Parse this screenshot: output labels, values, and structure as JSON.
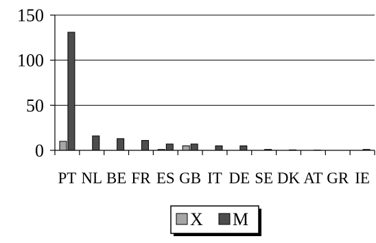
{
  "chart_data": {
    "type": "bar",
    "title": "",
    "xlabel": "",
    "ylabel": "",
    "categories": [
      "PT",
      "NL",
      "BE",
      "FR",
      "ES",
      "GB",
      "IT",
      "DE",
      "SE",
      "DK",
      "AT",
      "GR",
      "IE"
    ],
    "series": [
      {
        "name": "X",
        "color": "#a6a6a6",
        "values": [
          10,
          0,
          0,
          0,
          1,
          5,
          0,
          0,
          0,
          0,
          0,
          0,
          0
        ]
      },
      {
        "name": "M",
        "color": "#4d4d4d",
        "values": [
          131,
          16,
          13,
          11,
          7,
          7,
          5,
          5,
          1,
          0.5,
          0.3,
          0,
          1
        ]
      }
    ],
    "ylim": [
      0,
      150
    ],
    "yticks": [
      0,
      50,
      100,
      150
    ],
    "grid": true,
    "legend_position": "bottom"
  }
}
